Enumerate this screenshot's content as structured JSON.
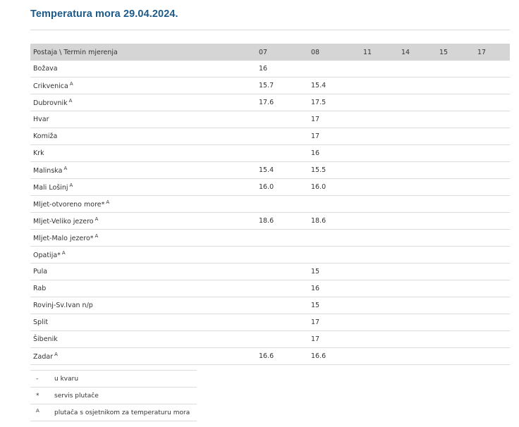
{
  "title": "Temperatura mora 29.04.2024.",
  "table": {
    "headers": [
      "Postaja \\ Termin mjerenja",
      "07",
      "08",
      "11",
      "14",
      "15",
      "17"
    ],
    "rows": [
      {
        "station": "Božava",
        "mark": "",
        "values": [
          "16",
          "",
          "",
          "",
          "",
          ""
        ]
      },
      {
        "station": "Crikvenica",
        "mark": "A",
        "values": [
          "15.7",
          "15.4",
          "",
          "",
          "",
          ""
        ]
      },
      {
        "station": "Dubrovnik",
        "mark": "A",
        "values": [
          "17.6",
          "17.5",
          "",
          "",
          "",
          ""
        ]
      },
      {
        "station": "Hvar",
        "mark": "",
        "values": [
          "",
          "17",
          "",
          "",
          "",
          ""
        ]
      },
      {
        "station": "Komiža",
        "mark": "",
        "values": [
          "",
          "17",
          "",
          "",
          "",
          ""
        ]
      },
      {
        "station": "Krk",
        "mark": "",
        "values": [
          "",
          "16",
          "",
          "",
          "",
          ""
        ]
      },
      {
        "station": "Malinska",
        "mark": "A",
        "values": [
          "15.4",
          "15.5",
          "",
          "",
          "",
          ""
        ]
      },
      {
        "station": "Mali Lošinj",
        "mark": "A",
        "values": [
          "16.0",
          "16.0",
          "",
          "",
          "",
          ""
        ]
      },
      {
        "station": "Mljet-otvoreno more*",
        "mark": "A",
        "values": [
          "",
          "",
          "",
          "",
          "",
          ""
        ]
      },
      {
        "station": "Mljet-Veliko jezero",
        "mark": "A",
        "values": [
          "18.6",
          "18.6",
          "",
          "",
          "",
          ""
        ]
      },
      {
        "station": "Mljet-Malo jezero*",
        "mark": "A",
        "values": [
          "",
          "",
          "",
          "",
          "",
          ""
        ]
      },
      {
        "station": "Opatija*",
        "mark": "A",
        "values": [
          "",
          "",
          "",
          "",
          "",
          ""
        ]
      },
      {
        "station": "Pula",
        "mark": "",
        "values": [
          "",
          "15",
          "",
          "",
          "",
          ""
        ]
      },
      {
        "station": "Rab",
        "mark": "",
        "values": [
          "",
          "16",
          "",
          "",
          "",
          ""
        ]
      },
      {
        "station": "Rovinj-Sv.Ivan n/p",
        "mark": "",
        "values": [
          "",
          "15",
          "",
          "",
          "",
          ""
        ]
      },
      {
        "station": "Split",
        "mark": "",
        "values": [
          "",
          "17",
          "",
          "",
          "",
          ""
        ]
      },
      {
        "station": "Šibenik",
        "mark": "",
        "values": [
          "",
          "17",
          "",
          "",
          "",
          ""
        ]
      },
      {
        "station": "Zadar",
        "mark": "A",
        "values": [
          "16.6",
          "16.6",
          "",
          "",
          "",
          ""
        ]
      }
    ]
  },
  "legend": [
    {
      "symbol": "-",
      "superscript": false,
      "text": "u kvaru"
    },
    {
      "symbol": "*",
      "superscript": false,
      "text": "servis plutače"
    },
    {
      "symbol": "A",
      "superscript": true,
      "text": "plutača s osjetnikom za temperaturu mora"
    }
  ]
}
